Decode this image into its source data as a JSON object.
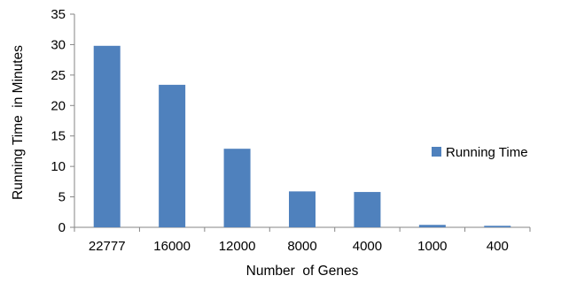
{
  "chart_data": {
    "type": "bar",
    "title": "",
    "xlabel": "Number  of Genes",
    "ylabel": "Running Time  in Minutes",
    "categories": [
      "22777",
      "16000",
      "12000",
      "8000",
      "4000",
      "1000",
      "400"
    ],
    "series": [
      {
        "name": "Running Time",
        "values": [
          29.8,
          23.4,
          12.9,
          5.9,
          5.8,
          0.4,
          0.25
        ],
        "color": "#4f81bd"
      }
    ],
    "ylim": [
      0,
      35
    ],
    "yticks": [
      0,
      5,
      10,
      15,
      20,
      25,
      30,
      35
    ],
    "legend_position": "right",
    "grid": false
  }
}
